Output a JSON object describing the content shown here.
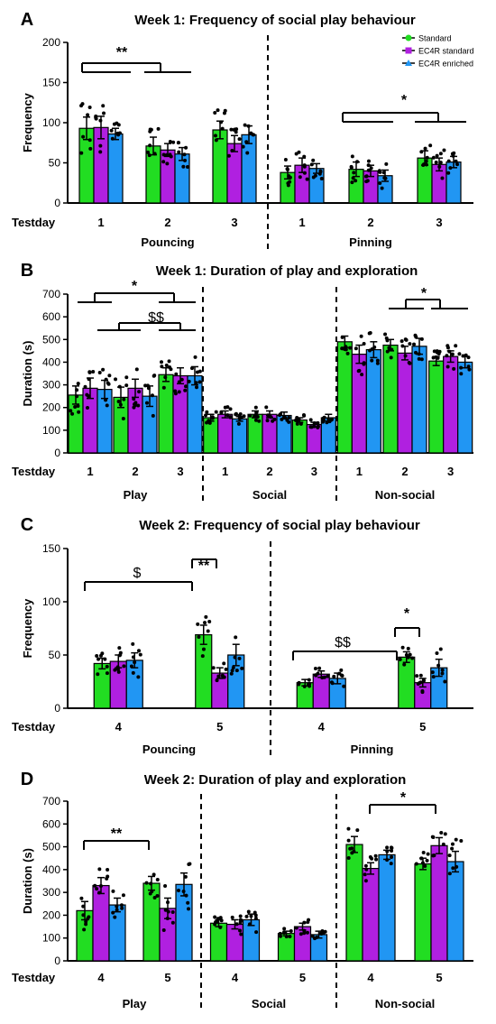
{
  "colors": {
    "standard": "#22dd22",
    "ec4r_standard": "#b020e0",
    "ec4r_enriched": "#2196f3",
    "axis": "#000000"
  },
  "legend": [
    {
      "name": "Standard",
      "marker": "circle"
    },
    {
      "name": "EC4R standard",
      "marker": "square"
    },
    {
      "name": "EC4R enriched",
      "marker": "triangle"
    }
  ],
  "chart_data": [
    {
      "panel": "A",
      "type": "bar",
      "title": "Week 1: Frequency of social play behaviour",
      "ylabel": "Frequency",
      "xlabel": "Testday",
      "ylim": [
        0,
        200
      ],
      "yticks": [
        0,
        50,
        100,
        150,
        200
      ],
      "categories": [
        "1",
        "2",
        "3",
        "1",
        "2",
        "3"
      ],
      "groups": [
        {
          "label": "Pouncing",
          "members": [
            "1",
            "2",
            "3"
          ]
        },
        {
          "label": "Pinning",
          "members": [
            "1",
            "2",
            "3"
          ]
        }
      ],
      "series": [
        {
          "name": "Standard",
          "values": [
            93,
            71,
            91,
            38,
            42,
            56
          ],
          "errors": [
            14,
            11,
            11,
            8,
            9,
            9
          ]
        },
        {
          "name": "EC4R standard",
          "values": [
            94,
            66,
            74,
            47,
            40,
            48
          ],
          "errors": [
            14,
            8,
            10,
            9,
            7,
            8
          ]
        },
        {
          "name": "EC4R enriched",
          "values": [
            86,
            61,
            85,
            43,
            34,
            51
          ],
          "errors": [
            7,
            8,
            11,
            6,
            7,
            7
          ]
        }
      ],
      "annotations": [
        "**",
        "*"
      ]
    },
    {
      "panel": "B",
      "type": "bar",
      "title": "Week 1: Duration of play and exploration",
      "ylabel": "Duration (s)",
      "xlabel": "Testday",
      "ylim": [
        0,
        700
      ],
      "yticks": [
        0,
        100,
        200,
        300,
        400,
        500,
        600,
        700
      ],
      "categories": [
        "1",
        "2",
        "3",
        "1",
        "2",
        "3",
        "1",
        "2",
        "3"
      ],
      "groups": [
        {
          "label": "Play",
          "members": [
            "1",
            "2",
            "3"
          ]
        },
        {
          "label": "Social",
          "members": [
            "1",
            "2",
            "3"
          ]
        },
        {
          "label": "Non-social",
          "members": [
            "1",
            "2",
            "3"
          ]
        }
      ],
      "series": [
        {
          "name": "Standard",
          "values": [
            255,
            245,
            345,
            155,
            170,
            145,
            490,
            475,
            405
          ],
          "errors": [
            40,
            45,
            30,
            15,
            15,
            10,
            25,
            25,
            20
          ]
        },
        {
          "name": "EC4R standard",
          "values": [
            285,
            285,
            340,
            170,
            170,
            125,
            435,
            440,
            425
          ],
          "errors": [
            45,
            40,
            35,
            15,
            15,
            10,
            40,
            30,
            25
          ]
        },
        {
          "name": "EC4R enriched",
          "values": [
            280,
            250,
            340,
            150,
            165,
            155,
            455,
            470,
            400
          ],
          "errors": [
            40,
            45,
            40,
            10,
            15,
            15,
            35,
            35,
            25
          ]
        }
      ],
      "annotations": [
        "*",
        "$$",
        "*"
      ]
    },
    {
      "panel": "C",
      "type": "bar",
      "title": "Week 2: Frequency of social play behaviour",
      "ylabel": "Frequency",
      "xlabel": "Testday",
      "ylim": [
        0,
        150
      ],
      "yticks": [
        0,
        50,
        100,
        150
      ],
      "categories": [
        "4",
        "5",
        "4",
        "5"
      ],
      "groups": [
        {
          "label": "Pouncing",
          "members": [
            "4",
            "5"
          ]
        },
        {
          "label": "Pinning",
          "members": [
            "4",
            "5"
          ]
        }
      ],
      "series": [
        {
          "name": "Standard",
          "values": [
            42,
            69,
            24,
            48
          ],
          "errors": [
            5,
            9,
            3,
            5
          ]
        },
        {
          "name": "EC4R standard",
          "values": [
            44,
            33,
            32,
            24
          ],
          "errors": [
            6,
            5,
            3,
            4
          ]
        },
        {
          "name": "EC4R enriched",
          "values": [
            45,
            50,
            28,
            38
          ],
          "errors": [
            7,
            10,
            5,
            8
          ]
        }
      ],
      "annotations": [
        "$",
        "**",
        "$$",
        "*"
      ]
    },
    {
      "panel": "D",
      "type": "bar",
      "title": "Week 2: Duration of play and exploration",
      "ylabel": "Duration (s)",
      "xlabel": "Testday",
      "ylim": [
        0,
        700
      ],
      "yticks": [
        0,
        100,
        200,
        300,
        400,
        500,
        600,
        700
      ],
      "categories": [
        "4",
        "5",
        "4",
        "5",
        "4",
        "5"
      ],
      "groups": [
        {
          "label": "Play",
          "members": [
            "4",
            "5"
          ]
        },
        {
          "label": "Social",
          "members": [
            "4",
            "5"
          ]
        },
        {
          "label": "Non-social",
          "members": [
            "4",
            "5"
          ]
        }
      ],
      "series": [
        {
          "name": "Standard",
          "values": [
            220,
            340,
            165,
            120,
            510,
            425
          ],
          "errors": [
            40,
            30,
            15,
            10,
            35,
            25
          ]
        },
        {
          "name": "EC4R standard",
          "values": [
            330,
            230,
            160,
            150,
            405,
            505
          ],
          "errors": [
            35,
            45,
            20,
            15,
            25,
            35
          ]
        },
        {
          "name": "EC4R enriched",
          "values": [
            245,
            335,
            180,
            115,
            465,
            435
          ],
          "errors": [
            30,
            50,
            25,
            15,
            20,
            45
          ]
        }
      ],
      "annotations": [
        "**",
        "*"
      ]
    }
  ]
}
